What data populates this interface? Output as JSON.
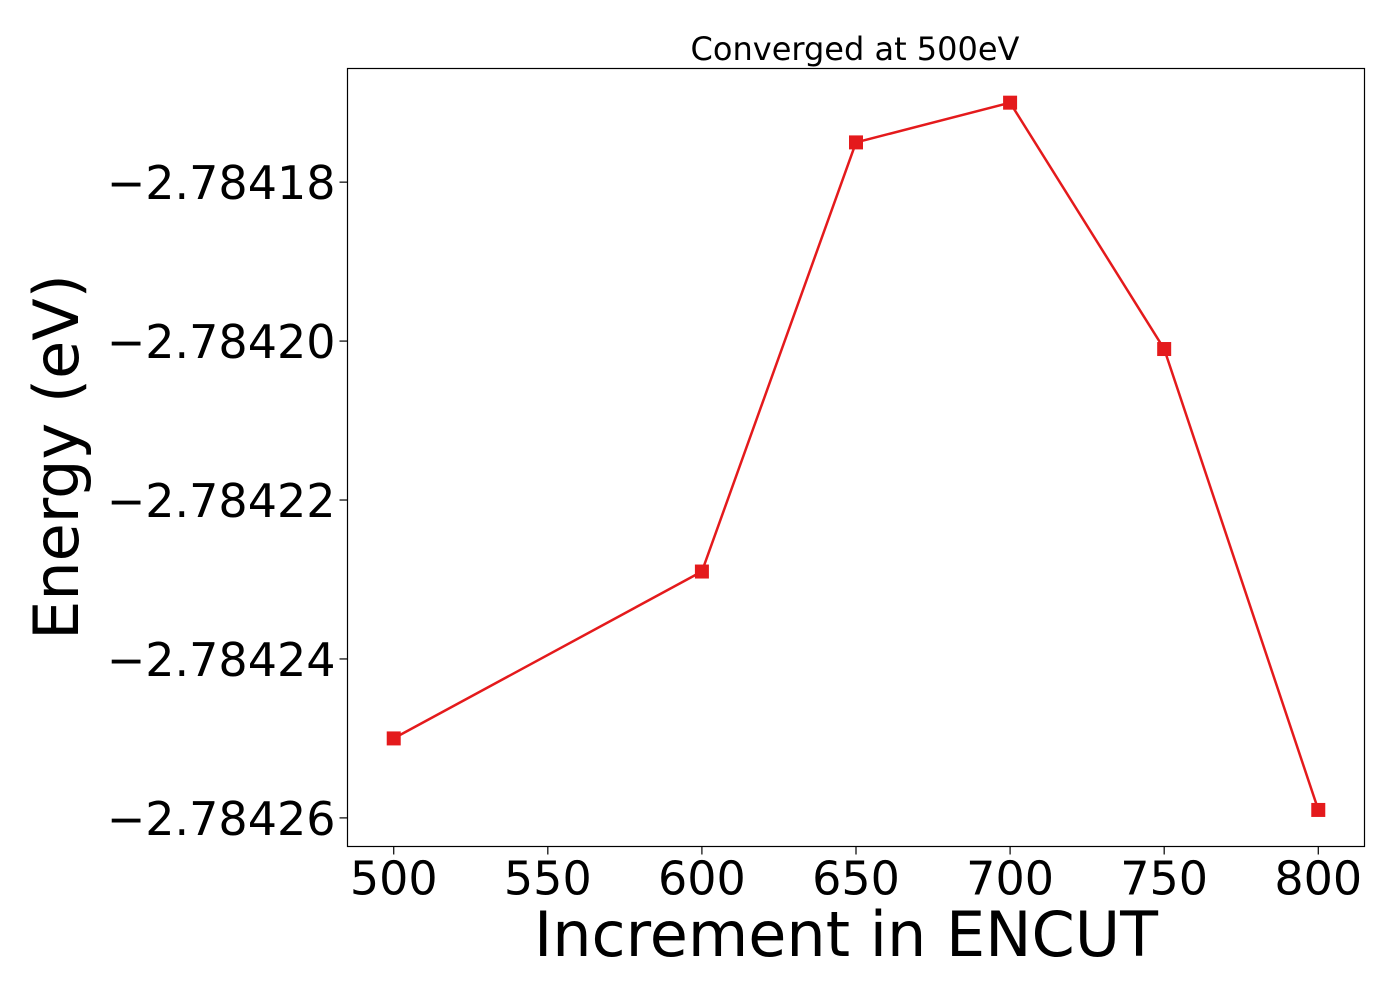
{
  "chart_data": {
    "type": "line",
    "title": "Converged at 500eV",
    "xlabel": "Increment in ENCUT",
    "ylabel": "Energy (eV)",
    "x": [
      500,
      600,
      650,
      700,
      750,
      800
    ],
    "series": [
      {
        "values": [
          -2.78425,
          -2.784229,
          -2.784175,
          -2.78417,
          -2.784201,
          -2.784259
        ]
      }
    ],
    "xlim": [
      485,
      815
    ],
    "ylim": [
      -2.7842636,
      -2.7841657
    ],
    "xticks": [
      500,
      550,
      600,
      650,
      700,
      750,
      800
    ],
    "xtick_labels": [
      "500",
      "550",
      "600",
      "650",
      "700",
      "750",
      "800"
    ],
    "yticks": [
      -2.78418,
      -2.7842,
      -2.78422,
      -2.78424,
      -2.78426
    ],
    "ytick_labels": [
      "−2.78418",
      "−2.78420",
      "−2.78422",
      "−2.78424",
      "−2.78426"
    ],
    "grid": false,
    "legend": "none",
    "line_color": "#e41a1c",
    "marker": "square"
  }
}
